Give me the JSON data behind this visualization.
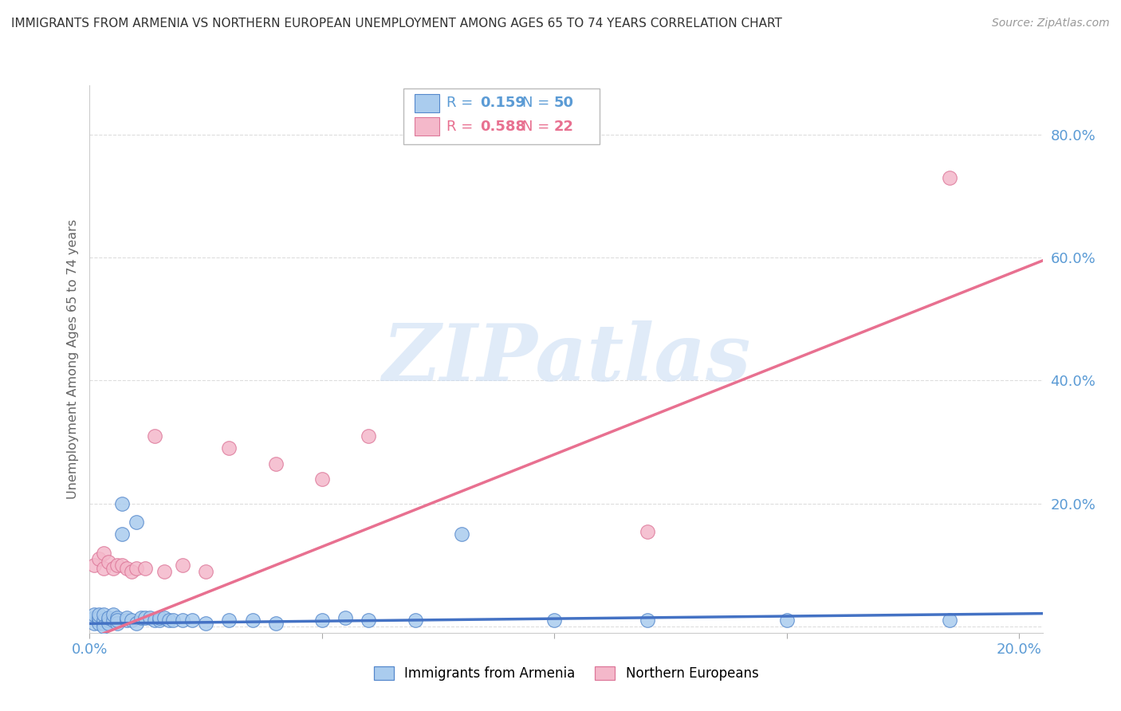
{
  "title": "IMMIGRANTS FROM ARMENIA VS NORTHERN EUROPEAN UNEMPLOYMENT AMONG AGES 65 TO 74 YEARS CORRELATION CHART",
  "source": "Source: ZipAtlas.com",
  "label_blue": "Immigrants from Armenia",
  "label_pink": "Northern Europeans",
  "ylabel": "Unemployment Among Ages 65 to 74 years",
  "blue_R": "0.159",
  "blue_N": "50",
  "pink_R": "0.588",
  "pink_N": "22",
  "blue_fill": "#AACCEE",
  "pink_fill": "#F4B8CA",
  "blue_edge": "#5588CC",
  "pink_edge": "#DD7799",
  "blue_line": "#4472C4",
  "pink_line": "#E87090",
  "legend_text_blue": "#5B9BD5",
  "legend_text_pink": "#E87090",
  "tick_color": "#5B9BD5",
  "watermark_color": "#C8DCF4",
  "bg_color": "#FFFFFF",
  "grid_color": "#DDDDDD",
  "title_color": "#333333",
  "source_color": "#999999",
  "ylabel_color": "#666666",
  "xlim": [
    0.0,
    0.205
  ],
  "ylim": [
    -0.01,
    0.88
  ],
  "blue_x": [
    0.001,
    0.001,
    0.001,
    0.002,
    0.002,
    0.002,
    0.002,
    0.003,
    0.003,
    0.003,
    0.003,
    0.004,
    0.004,
    0.004,
    0.005,
    0.005,
    0.006,
    0.006,
    0.006,
    0.007,
    0.007,
    0.008,
    0.008,
    0.009,
    0.01,
    0.01,
    0.011,
    0.012,
    0.013,
    0.014,
    0.015,
    0.015,
    0.016,
    0.017,
    0.018,
    0.02,
    0.022,
    0.025,
    0.03,
    0.035,
    0.04,
    0.05,
    0.055,
    0.06,
    0.07,
    0.08,
    0.1,
    0.12,
    0.15,
    0.185
  ],
  "blue_y": [
    0.005,
    0.015,
    0.02,
    0.01,
    0.005,
    0.015,
    0.02,
    0.005,
    0.01,
    0.02,
    0.0,
    0.01,
    0.005,
    0.015,
    0.01,
    0.02,
    0.015,
    0.005,
    0.01,
    0.2,
    0.15,
    0.01,
    0.015,
    0.01,
    0.17,
    0.005,
    0.015,
    0.015,
    0.015,
    0.01,
    0.01,
    0.015,
    0.015,
    0.01,
    0.01,
    0.01,
    0.01,
    0.005,
    0.01,
    0.01,
    0.005,
    0.01,
    0.015,
    0.01,
    0.01,
    0.15,
    0.01,
    0.01,
    0.01,
    0.01
  ],
  "pink_x": [
    0.001,
    0.002,
    0.003,
    0.003,
    0.004,
    0.005,
    0.006,
    0.007,
    0.008,
    0.009,
    0.01,
    0.012,
    0.014,
    0.016,
    0.02,
    0.025,
    0.03,
    0.04,
    0.05,
    0.06,
    0.12,
    0.185
  ],
  "pink_y": [
    0.1,
    0.11,
    0.12,
    0.095,
    0.105,
    0.095,
    0.1,
    0.1,
    0.095,
    0.09,
    0.095,
    0.095,
    0.31,
    0.09,
    0.1,
    0.09,
    0.29,
    0.265,
    0.24,
    0.31,
    0.155,
    0.73
  ],
  "watermark": "ZIPatlas"
}
